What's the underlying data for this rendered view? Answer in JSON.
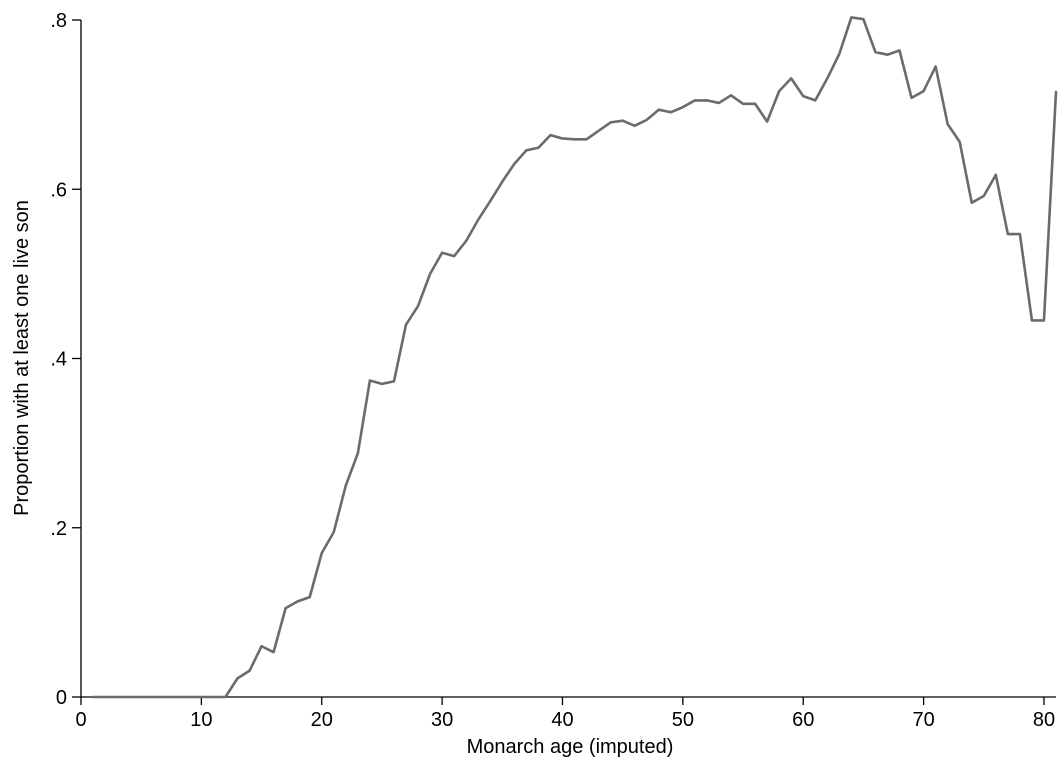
{
  "colors": {
    "line": "#6b6b6b",
    "axis": "#000000",
    "background": "#ffffff"
  },
  "chart_data": {
    "type": "line",
    "title": "",
    "xlabel": "Monarch age (imputed)",
    "ylabel": "Proportion with at least one live son",
    "xlim": [
      0,
      81
    ],
    "ylim": [
      0,
      0.8
    ],
    "grid": false,
    "x_ticks": [
      0,
      10,
      20,
      30,
      40,
      50,
      60,
      70,
      80
    ],
    "x_tick_labels": [
      "0",
      "10",
      "20",
      "30",
      "40",
      "50",
      "60",
      "70",
      "80"
    ],
    "y_ticks": [
      0,
      0.2,
      0.4,
      0.6,
      0.8
    ],
    "y_tick_labels": [
      "0",
      ".2",
      ".4",
      ".6",
      ".8"
    ],
    "series": [
      {
        "x": [
          1,
          2,
          3,
          4,
          5,
          6,
          7,
          8,
          9,
          10,
          11,
          12,
          13,
          14,
          15,
          16,
          17,
          18,
          19,
          20,
          21,
          22,
          23,
          24,
          25,
          26,
          27,
          28,
          29,
          30,
          31,
          32,
          33,
          34,
          35,
          36,
          37,
          38,
          39,
          40,
          41,
          42,
          43,
          44,
          45,
          46,
          47,
          48,
          49,
          50,
          51,
          52,
          53,
          54,
          55,
          56,
          57,
          58,
          59,
          60,
          61,
          62,
          63,
          64,
          65,
          66,
          67,
          68,
          69,
          70,
          71,
          72,
          73,
          74,
          75,
          76,
          77,
          78,
          79,
          80,
          81
        ],
        "y": [
          0,
          0,
          0,
          0,
          0,
          0,
          0,
          0,
          0,
          0,
          0,
          0,
          0.022,
          0.031,
          0.06,
          0.053,
          0.105,
          0.113,
          0.118,
          0.17,
          0.195,
          0.25,
          0.288,
          0.374,
          0.37,
          0.373,
          0.44,
          0.462,
          0.5,
          0.525,
          0.521,
          0.539,
          0.564,
          0.586,
          0.609,
          0.63,
          0.646,
          0.649,
          0.664,
          0.66,
          0.659,
          0.659,
          0.669,
          0.679,
          0.681,
          0.675,
          0.682,
          0.694,
          0.691,
          0.697,
          0.705,
          0.705,
          0.702,
          0.711,
          0.701,
          0.701,
          0.68,
          0.716,
          0.731,
          0.71,
          0.705,
          0.731,
          0.76,
          0.803,
          0.801,
          0.762,
          0.759,
          0.764,
          0.708,
          0.716,
          0.745,
          0.677,
          0.656,
          0.584,
          0.592,
          0.617,
          0.547,
          0.547,
          0.445,
          0.445,
          0.715
        ]
      }
    ]
  }
}
